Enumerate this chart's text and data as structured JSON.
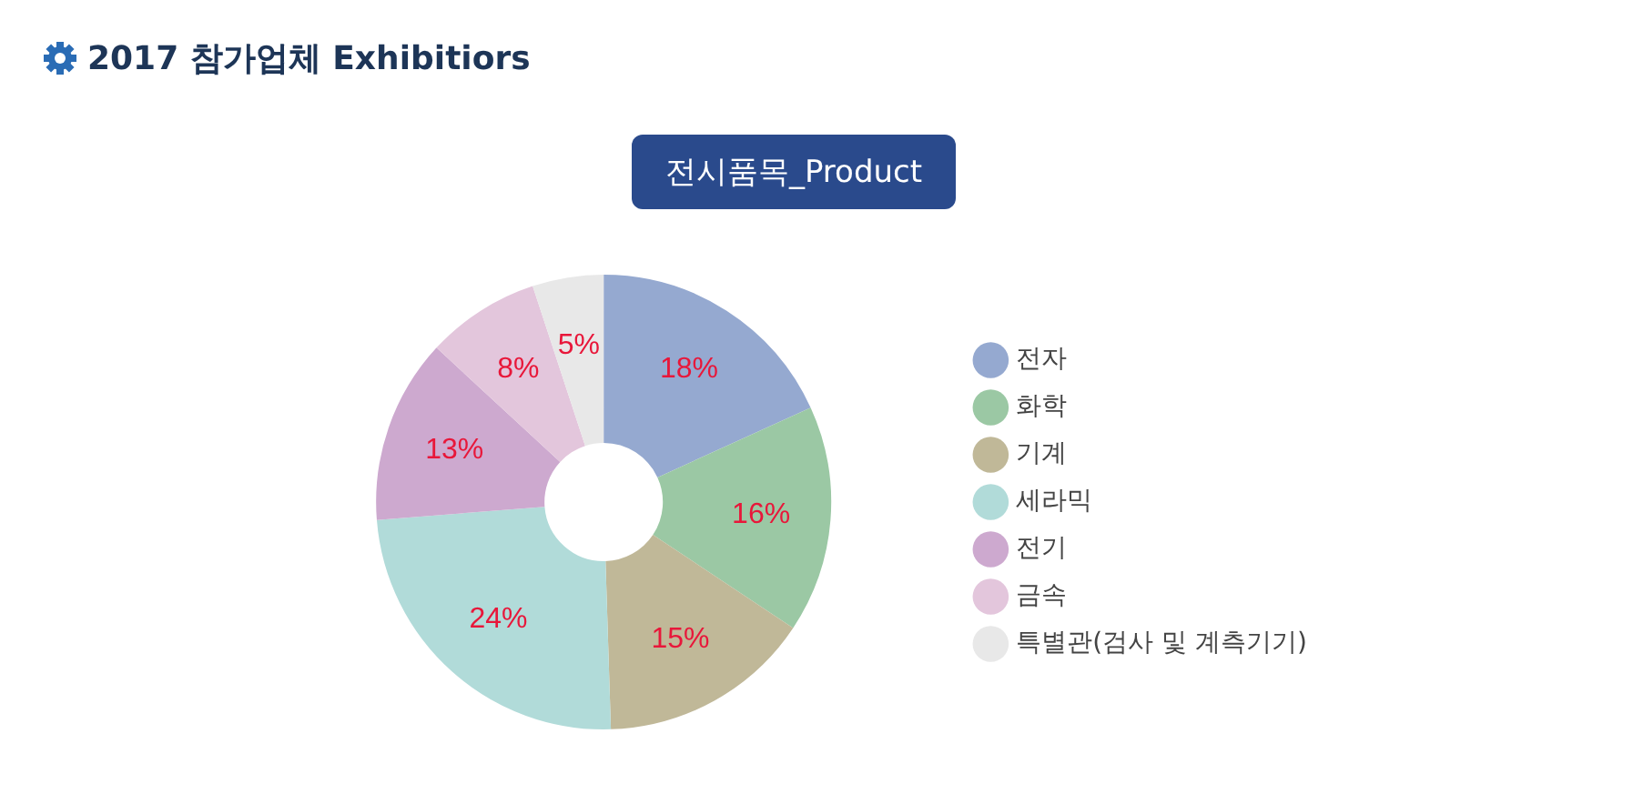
{
  "chart_data": {
    "type": "donut",
    "title": "2017 참가업체 Exhibitiors",
    "subtitle": "전시품목_Product",
    "categories": [
      "전자",
      "화학",
      "기계",
      "세라믹",
      "전기",
      "금속",
      "특별관(검사 및 계측기기)"
    ],
    "values": [
      18,
      16,
      15,
      24,
      13,
      8,
      5
    ],
    "value_labels": [
      "18%",
      "16%",
      "15%",
      "24%",
      "13%",
      "8%",
      "5%"
    ],
    "colors": [
      "#95a9d0",
      "#9bc8a4",
      "#c0b898",
      "#b1dbd9",
      "#cda9cf",
      "#e3c6dc",
      "#e8e8e8"
    ],
    "legend": "right"
  }
}
